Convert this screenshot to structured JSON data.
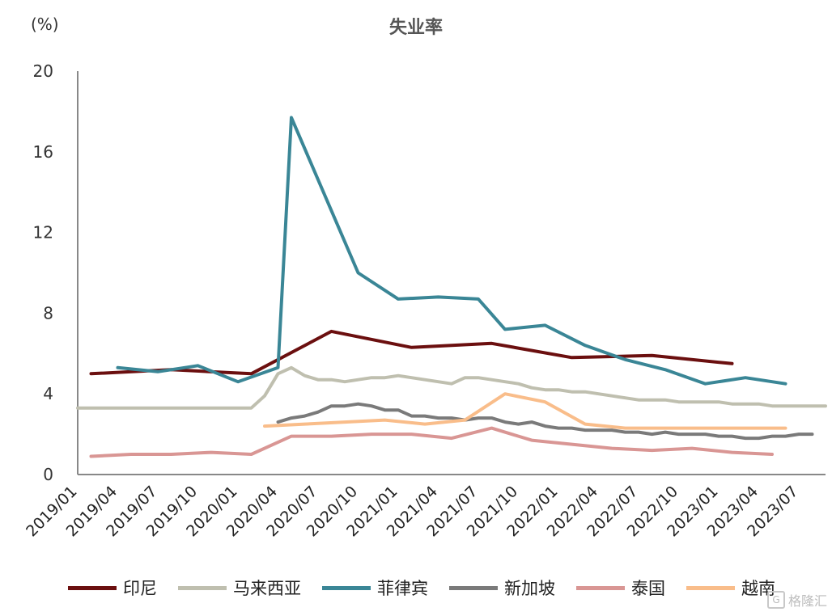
{
  "chart_data": {
    "type": "line",
    "title": "失业率",
    "ylabel": "(%)",
    "xlabel": "",
    "ylim": [
      0,
      20
    ],
    "yticks": [
      0,
      4,
      8,
      12,
      16,
      20
    ],
    "ytick_labels": [
      "0",
      "4",
      "8",
      "12",
      "16",
      "20"
    ],
    "xlim": [
      "2019/01",
      "2023/09"
    ],
    "xtick_labels": [
      "2019/01",
      "2019/04",
      "2019/07",
      "2019/10",
      "2020/01",
      "2020/04",
      "2020/07",
      "2020/10",
      "2021/01",
      "2021/04",
      "2021/07",
      "2021/10",
      "2022/01",
      "2022/04",
      "2022/07",
      "2022/10",
      "2023/01",
      "2023/04",
      "2023/07"
    ],
    "grid": false,
    "legend_position": "bottom",
    "series": [
      {
        "name": "印尼",
        "color": "#6b0f0f",
        "points": [
          [
            "2019/02",
            5.0
          ],
          [
            "2019/08",
            5.2
          ],
          [
            "2020/02",
            5.0
          ],
          [
            "2020/08",
            7.1
          ],
          [
            "2021/02",
            6.3
          ],
          [
            "2021/08",
            6.5
          ],
          [
            "2022/02",
            5.8
          ],
          [
            "2022/08",
            5.9
          ],
          [
            "2023/02",
            5.5
          ]
        ]
      },
      {
        "name": "马来西亚",
        "color": "#bfbfaf",
        "points": [
          [
            "2019/01",
            3.3
          ],
          [
            "2019/02",
            3.3
          ],
          [
            "2019/03",
            3.3
          ],
          [
            "2019/04",
            3.3
          ],
          [
            "2019/05",
            3.3
          ],
          [
            "2019/06",
            3.3
          ],
          [
            "2019/07",
            3.3
          ],
          [
            "2019/08",
            3.3
          ],
          [
            "2019/09",
            3.3
          ],
          [
            "2019/10",
            3.3
          ],
          [
            "2019/11",
            3.3
          ],
          [
            "2019/12",
            3.3
          ],
          [
            "2020/01",
            3.3
          ],
          [
            "2020/02",
            3.3
          ],
          [
            "2020/03",
            3.9
          ],
          [
            "2020/04",
            5.0
          ],
          [
            "2020/05",
            5.3
          ],
          [
            "2020/06",
            4.9
          ],
          [
            "2020/07",
            4.7
          ],
          [
            "2020/08",
            4.7
          ],
          [
            "2020/09",
            4.6
          ],
          [
            "2020/10",
            4.7
          ],
          [
            "2020/11",
            4.8
          ],
          [
            "2020/12",
            4.8
          ],
          [
            "2021/01",
            4.9
          ],
          [
            "2021/02",
            4.8
          ],
          [
            "2021/03",
            4.7
          ],
          [
            "2021/04",
            4.6
          ],
          [
            "2021/05",
            4.5
          ],
          [
            "2021/06",
            4.8
          ],
          [
            "2021/07",
            4.8
          ],
          [
            "2021/08",
            4.7
          ],
          [
            "2021/09",
            4.6
          ],
          [
            "2021/10",
            4.5
          ],
          [
            "2021/11",
            4.3
          ],
          [
            "2021/12",
            4.2
          ],
          [
            "2022/01",
            4.2
          ],
          [
            "2022/02",
            4.1
          ],
          [
            "2022/03",
            4.1
          ],
          [
            "2022/04",
            4.0
          ],
          [
            "2022/05",
            3.9
          ],
          [
            "2022/06",
            3.8
          ],
          [
            "2022/07",
            3.7
          ],
          [
            "2022/08",
            3.7
          ],
          [
            "2022/09",
            3.7
          ],
          [
            "2022/10",
            3.6
          ],
          [
            "2022/11",
            3.6
          ],
          [
            "2022/12",
            3.6
          ],
          [
            "2023/01",
            3.6
          ],
          [
            "2023/02",
            3.5
          ],
          [
            "2023/03",
            3.5
          ],
          [
            "2023/04",
            3.5
          ],
          [
            "2023/05",
            3.4
          ],
          [
            "2023/06",
            3.4
          ],
          [
            "2023/07",
            3.4
          ],
          [
            "2023/08",
            3.4
          ],
          [
            "2023/09",
            3.4
          ]
        ]
      },
      {
        "name": "菲律宾",
        "color": "#3a8696",
        "points": [
          [
            "2019/04",
            5.3
          ],
          [
            "2019/07",
            5.1
          ],
          [
            "2019/10",
            5.4
          ],
          [
            "2020/01",
            4.6
          ],
          [
            "2020/04",
            5.3
          ],
          [
            "2020/05",
            17.7
          ],
          [
            "2020/10",
            10.0
          ],
          [
            "2021/01",
            8.7
          ],
          [
            "2021/04",
            8.8
          ],
          [
            "2021/07",
            8.7
          ],
          [
            "2021/09",
            7.2
          ],
          [
            "2021/12",
            7.4
          ],
          [
            "2022/03",
            6.4
          ],
          [
            "2022/06",
            5.7
          ],
          [
            "2022/09",
            5.2
          ],
          [
            "2022/12",
            4.5
          ],
          [
            "2023/03",
            4.8
          ],
          [
            "2023/06",
            4.5
          ]
        ]
      },
      {
        "name": "新加坡",
        "color": "#7a7a7a",
        "points": [
          [
            "2020/04",
            2.6
          ],
          [
            "2020/05",
            2.8
          ],
          [
            "2020/06",
            2.9
          ],
          [
            "2020/07",
            3.1
          ],
          [
            "2020/08",
            3.4
          ],
          [
            "2020/09",
            3.4
          ],
          [
            "2020/10",
            3.5
          ],
          [
            "2020/11",
            3.4
          ],
          [
            "2020/12",
            3.2
          ],
          [
            "2021/01",
            3.2
          ],
          [
            "2021/02",
            2.9
          ],
          [
            "2021/03",
            2.9
          ],
          [
            "2021/04",
            2.8
          ],
          [
            "2021/05",
            2.8
          ],
          [
            "2021/06",
            2.7
          ],
          [
            "2021/07",
            2.8
          ],
          [
            "2021/08",
            2.8
          ],
          [
            "2021/09",
            2.6
          ],
          [
            "2021/10",
            2.5
          ],
          [
            "2021/11",
            2.6
          ],
          [
            "2021/12",
            2.4
          ],
          [
            "2022/01",
            2.3
          ],
          [
            "2022/02",
            2.3
          ],
          [
            "2022/03",
            2.2
          ],
          [
            "2022/04",
            2.2
          ],
          [
            "2022/05",
            2.2
          ],
          [
            "2022/06",
            2.1
          ],
          [
            "2022/07",
            2.1
          ],
          [
            "2022/08",
            2.0
          ],
          [
            "2022/09",
            2.1
          ],
          [
            "2022/10",
            2.0
          ],
          [
            "2022/11",
            2.0
          ],
          [
            "2022/12",
            2.0
          ],
          [
            "2023/01",
            1.9
          ],
          [
            "2023/02",
            1.9
          ],
          [
            "2023/03",
            1.8
          ],
          [
            "2023/04",
            1.8
          ],
          [
            "2023/05",
            1.9
          ],
          [
            "2023/06",
            1.9
          ],
          [
            "2023/07",
            2.0
          ],
          [
            "2023/08",
            2.0
          ]
        ]
      },
      {
        "name": "泰国",
        "color": "#d99694",
        "points": [
          [
            "2019/02",
            0.9
          ],
          [
            "2019/05",
            1.0
          ],
          [
            "2019/08",
            1.0
          ],
          [
            "2019/11",
            1.1
          ],
          [
            "2020/02",
            1.0
          ],
          [
            "2020/05",
            1.9
          ],
          [
            "2020/08",
            1.9
          ],
          [
            "2020/11",
            2.0
          ],
          [
            "2021/02",
            2.0
          ],
          [
            "2021/05",
            1.8
          ],
          [
            "2021/08",
            2.3
          ],
          [
            "2021/11",
            1.7
          ],
          [
            "2022/02",
            1.5
          ],
          [
            "2022/05",
            1.3
          ],
          [
            "2022/08",
            1.2
          ],
          [
            "2022/11",
            1.3
          ],
          [
            "2023/02",
            1.1
          ],
          [
            "2023/05",
            1.0
          ]
        ]
      },
      {
        "name": "越南",
        "color": "#f9bd8a",
        "points": [
          [
            "2020/03",
            2.4
          ],
          [
            "2020/06",
            2.5
          ],
          [
            "2020/09",
            2.6
          ],
          [
            "2020/12",
            2.7
          ],
          [
            "2021/03",
            2.5
          ],
          [
            "2021/06",
            2.7
          ],
          [
            "2021/09",
            4.0
          ],
          [
            "2021/12",
            3.6
          ],
          [
            "2022/03",
            2.5
          ],
          [
            "2022/06",
            2.3
          ],
          [
            "2022/09",
            2.3
          ],
          [
            "2022/12",
            2.3
          ],
          [
            "2023/03",
            2.3
          ],
          [
            "2023/06",
            2.3
          ]
        ]
      }
    ]
  },
  "watermark": {
    "logo": "G",
    "text": "格隆汇"
  }
}
